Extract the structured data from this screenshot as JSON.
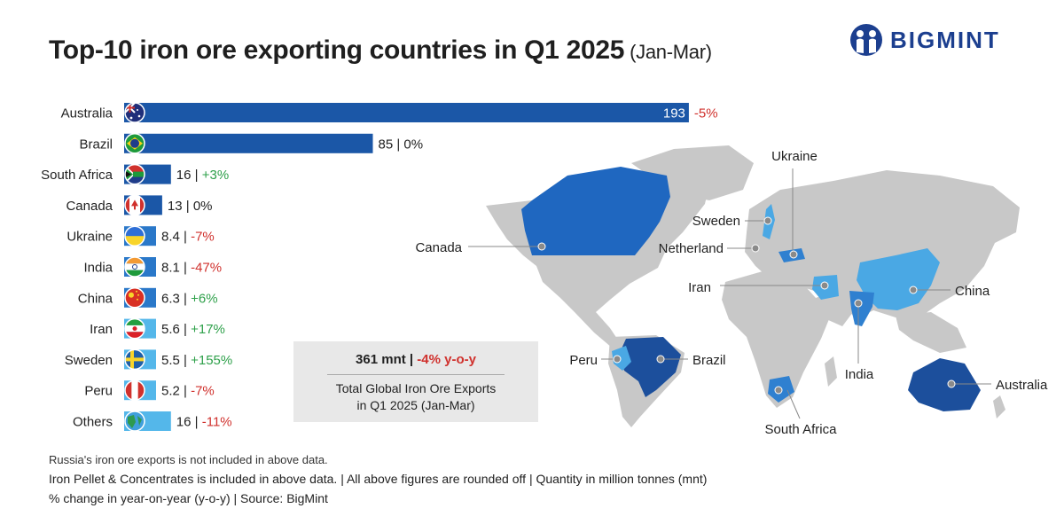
{
  "header": {
    "title": "Top-10 iron ore exporting countries in Q1 2025",
    "subtitle": "(Jan-Mar)",
    "brand": "BIGMINT"
  },
  "colors": {
    "bar_dark": "#1b57a7",
    "bar_mid": "#2a78c9",
    "bar_light": "#54b7ea",
    "negative": "#d0312d",
    "positive": "#2ea04a",
    "map_land": "#c8c8c8",
    "map_dark": "#1c4f9c",
    "map_mid": "#2f80d0",
    "map_light": "#4aa8e4"
  },
  "chart_data": {
    "type": "bar",
    "orientation": "horizontal",
    "unit": "mnt",
    "categories": [
      "Australia",
      "Brazil",
      "South Africa",
      "Canada",
      "Ukraine",
      "India",
      "China",
      "Iran",
      "Sweden",
      "Peru",
      "Others"
    ],
    "values": [
      193,
      85,
      16,
      13,
      8.4,
      8.1,
      6.3,
      5.6,
      5.5,
      5.2,
      16
    ],
    "value_labels": [
      "193",
      "85",
      "16",
      "13",
      "8.4",
      "8.1",
      "6.3",
      "5.6",
      "5.5",
      "5.2",
      "16"
    ],
    "changes": [
      "-5%",
      "0%",
      "+3%",
      "0%",
      "-7%",
      "-47%",
      "+6%",
      "+17%",
      "+155%",
      "-7%",
      "-11%"
    ],
    "flags": [
      "australia-flag",
      "brazil-flag",
      "south-africa-flag",
      "canada-flag",
      "ukraine-flag",
      "india-flag",
      "china-flag",
      "iran-flag",
      "sweden-flag",
      "peru-flag",
      "globe-icon"
    ],
    "bar_colors": [
      "#1b57a7",
      "#1b57a7",
      "#1b57a7",
      "#1b57a7",
      "#2a78c9",
      "#2a78c9",
      "#2a78c9",
      "#54b7ea",
      "#54b7ea",
      "#54b7ea",
      "#54b7ea"
    ]
  },
  "map": {
    "labels": [
      "Canada",
      "Sweden",
      "Netherland",
      "Ukraine",
      "Iran",
      "China",
      "India",
      "Peru",
      "Brazil",
      "South Africa",
      "Australia"
    ]
  },
  "summary": {
    "total": "361 mnt",
    "change": "-4% y-o-y",
    "desc_line1": "Total Global Iron Ore Exports",
    "desc_line2": "in Q1 2025 (Jan-Mar)"
  },
  "footnotes": {
    "note1": "Russia's iron ore exports is not included in above data.",
    "note2": "Iron Pellet & Concentrates is included in above data. | All above figures are rounded off | Quantity in million tonnes (mnt)",
    "note3": "% change in year-on-year (y-o-y) | Source: BigMint"
  }
}
